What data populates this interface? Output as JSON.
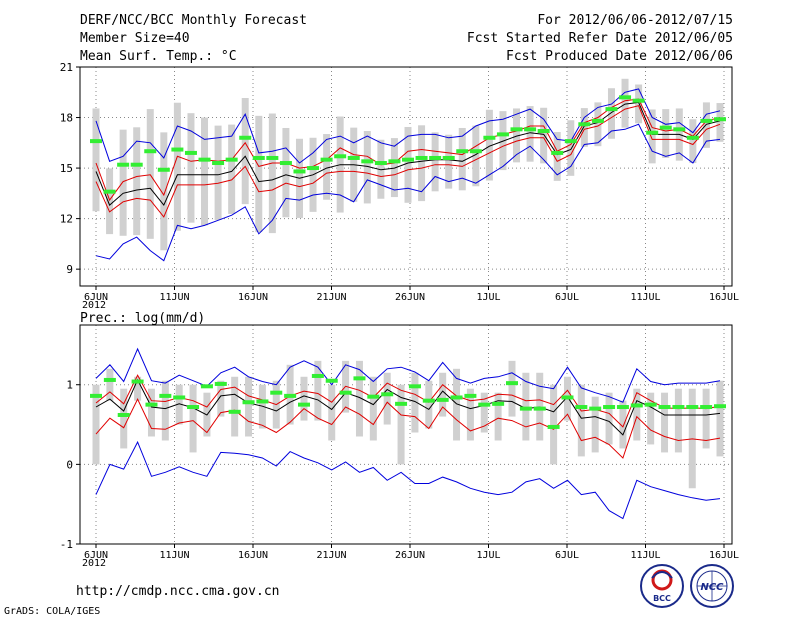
{
  "header": {
    "title": "DERF/NCC/BCC Monthly Forecast",
    "member_size": "Member Size=40",
    "variable": "Mean Surf. Temp.: °C",
    "period": "For 2012/06/06-2012/07/15",
    "refer_date": "Fcst Started Refer Date 2012/06/05",
    "produced_date": "Fcst Produced Date 2012/06/06"
  },
  "footer": {
    "url": "http://cmdp.ncc.cma.gov.cn",
    "grads_credit": "GrADS: COLA/IGES",
    "logo_bcc_text": "BCC",
    "logo_ncc_text": "NCC"
  },
  "colors": {
    "mean": "#000000",
    "spread": "#e00000",
    "extreme": "#0000dd",
    "climatology": "#33ee33",
    "range_bar": "#d0d0d0"
  },
  "chart_data": [
    {
      "type": "line",
      "title": "Mean Surf. Temp.: °C",
      "x_start_day": 1,
      "x_end_day": 40,
      "x_tick_labels": [
        "6JUN",
        "11JUN",
        "16JUN",
        "21JUN",
        "26JUN",
        "1JUL",
        "6JUL",
        "11JUL",
        "16JUL"
      ],
      "x_tick_days": [
        1,
        6,
        11,
        16,
        21,
        26,
        31,
        36,
        41
      ],
      "year_label": "2012",
      "ylim": [
        8,
        21
      ],
      "y_ticks": [
        9,
        12,
        15,
        18,
        21
      ],
      "series": [
        {
          "name": "ensemble mean",
          "values": [
            14.8,
            12.8,
            13.5,
            13.7,
            13.8,
            12.8,
            14.6,
            14.6,
            14.6,
            14.6,
            14.8,
            15.7,
            14.2,
            14.3,
            14.6,
            14.4,
            14.6,
            15.0,
            15.2,
            15.2,
            15.1,
            14.9,
            15.0,
            15.3,
            15.4,
            15.5,
            15.5,
            15.4,
            15.8,
            16.3,
            16.6,
            16.9,
            17.1,
            17.0,
            15.8,
            16.1,
            17.5,
            17.7,
            18.3,
            18.8,
            18.9,
            17.0,
            17.0,
            17.0,
            16.7,
            17.6,
            17.8
          ]
        },
        {
          "name": "spread upper",
          "values": [
            15.3,
            13.1,
            14.2,
            14.5,
            14.6,
            13.4,
            15.7,
            15.4,
            15.5,
            15.4,
            15.5,
            16.5,
            15.1,
            15.3,
            15.3,
            15.0,
            15.1,
            15.5,
            16.2,
            15.8,
            15.7,
            15.2,
            15.3,
            16.0,
            16.1,
            16.0,
            15.9,
            15.8,
            16.3,
            16.8,
            17.0,
            17.2,
            17.5,
            17.5,
            16.0,
            16.4,
            17.7,
            18.0,
            18.6,
            19.0,
            19.1,
            17.4,
            17.2,
            17.3,
            16.9,
            17.8,
            18.0
          ]
        },
        {
          "name": "spread lower",
          "values": [
            14.2,
            12.4,
            13.0,
            13.2,
            13.1,
            12.1,
            14.0,
            14.0,
            14.0,
            14.1,
            14.3,
            15.1,
            13.6,
            13.7,
            14.1,
            13.9,
            14.1,
            14.7,
            14.8,
            14.8,
            14.7,
            14.5,
            14.6,
            14.9,
            15.0,
            15.2,
            15.2,
            15.1,
            15.5,
            15.9,
            16.3,
            16.6,
            16.8,
            16.8,
            15.4,
            15.8,
            17.3,
            17.5,
            18.0,
            18.5,
            18.7,
            16.7,
            16.7,
            16.7,
            16.4,
            17.3,
            17.6
          ]
        },
        {
          "name": "max",
          "values": [
            17.8,
            15.4,
            15.7,
            16.6,
            16.5,
            15.6,
            17.5,
            17.2,
            16.7,
            16.8,
            16.9,
            18.2,
            15.9,
            16.0,
            16.2,
            15.3,
            15.9,
            16.7,
            16.9,
            16.5,
            16.9,
            16.5,
            16.3,
            16.9,
            17.0,
            17.0,
            16.8,
            16.9,
            17.5,
            17.8,
            17.9,
            18.2,
            18.5,
            17.9,
            16.7,
            16.6,
            18.0,
            18.6,
            18.8,
            19.5,
            19.7,
            18.0,
            17.6,
            17.7,
            17.1,
            18.2,
            18.4
          ]
        },
        {
          "name": "min",
          "values": [
            9.8,
            9.6,
            10.5,
            10.9,
            10.1,
            9.5,
            11.6,
            11.4,
            11.6,
            11.9,
            12.2,
            12.7,
            11.1,
            11.9,
            13.2,
            13.1,
            13.4,
            13.5,
            13.4,
            13.0,
            14.3,
            14.0,
            13.7,
            13.8,
            13.6,
            14.5,
            14.2,
            14.4,
            14.1,
            14.6,
            15.1,
            15.8,
            16.3,
            15.5,
            14.6,
            15.1,
            16.4,
            16.5,
            17.2,
            17.3,
            17.6,
            16.0,
            15.7,
            15.9,
            15.3,
            16.6,
            16.7
          ]
        },
        {
          "name": "climatology",
          "values": [
            16.6,
            13.6,
            15.2,
            15.2,
            16.0,
            14.9,
            16.1,
            15.9,
            15.5,
            15.3,
            15.5,
            16.8,
            15.6,
            15.6,
            15.3,
            14.8,
            15.0,
            15.5,
            15.7,
            15.6,
            15.4,
            15.3,
            15.4,
            15.5,
            15.6,
            15.6,
            15.6,
            16.0,
            16.0,
            16.8,
            17.0,
            17.3,
            17.3,
            17.2,
            15.9,
            16.6,
            17.6,
            17.8,
            18.5,
            19.2,
            19.0,
            17.1,
            17.4,
            17.3,
            16.8,
            17.8,
            17.9
          ]
        }
      ]
    },
    {
      "type": "line",
      "title": "Prec.: log(mm/d)",
      "x_start_day": 1,
      "x_end_day": 40,
      "x_tick_labels": [
        "6JUN",
        "11JUN",
        "16JUN",
        "21JUN",
        "26JUN",
        "1JUL",
        "6JUL",
        "11JUL",
        "16JUL"
      ],
      "x_tick_days": [
        1,
        6,
        11,
        16,
        21,
        26,
        31,
        36,
        41
      ],
      "year_label": "2012",
      "ylim": [
        -1,
        1.75
      ],
      "y_ticks": [
        -1,
        0,
        1
      ],
      "series": [
        {
          "name": "ensemble mean",
          "values": [
            0.72,
            0.82,
            0.67,
            1.06,
            0.72,
            0.7,
            0.76,
            0.71,
            0.62,
            0.86,
            0.88,
            0.77,
            0.73,
            0.67,
            0.78,
            0.86,
            0.81,
            0.69,
            0.9,
            0.84,
            0.75,
            0.94,
            0.84,
            0.79,
            0.69,
            0.92,
            0.76,
            0.7,
            0.74,
            0.8,
            0.79,
            0.7,
            0.72,
            0.66,
            0.85,
            0.58,
            0.6,
            0.54,
            0.37,
            0.8,
            0.72,
            0.62,
            0.62,
            0.62,
            0.62,
            0.64
          ]
        },
        {
          "name": "spread upper",
          "values": [
            0.77,
            0.91,
            0.76,
            1.12,
            0.8,
            0.79,
            0.84,
            0.8,
            0.72,
            0.94,
            0.97,
            0.86,
            0.81,
            0.75,
            0.86,
            0.92,
            0.89,
            0.78,
            0.98,
            0.93,
            0.84,
            1.02,
            0.93,
            0.88,
            0.78,
            1.0,
            0.86,
            0.8,
            0.82,
            0.88,
            0.87,
            0.8,
            0.81,
            0.75,
            0.93,
            0.67,
            0.69,
            0.64,
            0.47,
            0.9,
            0.8,
            0.71,
            0.7,
            0.71,
            0.7,
            0.73
          ]
        },
        {
          "name": "spread lower",
          "values": [
            0.38,
            0.58,
            0.46,
            0.82,
            0.45,
            0.44,
            0.52,
            0.55,
            0.4,
            0.65,
            0.68,
            0.54,
            0.49,
            0.4,
            0.53,
            0.7,
            0.58,
            0.5,
            0.72,
            0.63,
            0.5,
            0.78,
            0.62,
            0.6,
            0.45,
            0.72,
            0.56,
            0.42,
            0.48,
            0.58,
            0.55,
            0.47,
            0.52,
            0.44,
            0.63,
            0.3,
            0.34,
            0.25,
            0.08,
            0.6,
            0.43,
            0.35,
            0.3,
            0.32,
            0.3,
            0.33
          ]
        },
        {
          "name": "max",
          "values": [
            1.08,
            1.25,
            1.04,
            1.45,
            1.05,
            1.02,
            1.12,
            1.05,
            0.98,
            1.15,
            1.22,
            1.1,
            1.04,
            1.0,
            1.22,
            1.3,
            1.22,
            1.0,
            1.25,
            1.19,
            1.04,
            1.2,
            1.22,
            1.16,
            1.05,
            1.28,
            1.08,
            1.02,
            1.08,
            1.1,
            1.15,
            1.04,
            0.98,
            0.95,
            1.22,
            0.96,
            0.9,
            0.85,
            0.78,
            1.2,
            1.04,
            1.0,
            1.02,
            1.02,
            1.02,
            1.05
          ]
        },
        {
          "name": "min",
          "values": [
            -0.38,
            0.0,
            -0.06,
            0.28,
            -0.15,
            -0.1,
            -0.03,
            -0.1,
            -0.15,
            0.15,
            0.14,
            0.12,
            0.08,
            -0.02,
            0.16,
            0.08,
            0.02,
            -0.07,
            0.03,
            -0.1,
            -0.04,
            -0.2,
            -0.1,
            -0.24,
            -0.24,
            -0.16,
            -0.22,
            -0.3,
            -0.35,
            -0.38,
            -0.35,
            -0.22,
            -0.18,
            -0.3,
            -0.2,
            -0.38,
            -0.35,
            -0.58,
            -0.68,
            -0.2,
            -0.28,
            -0.33,
            -0.38,
            -0.42,
            -0.45,
            -0.43
          ]
        },
        {
          "name": "climatology",
          "values": [
            0.86,
            1.06,
            0.62,
            1.04,
            0.75,
            0.86,
            0.84,
            0.72,
            0.98,
            1.01,
            0.66,
            0.78,
            0.79,
            0.9,
            0.86,
            0.75,
            1.11,
            1.05,
            0.9,
            1.08,
            0.85,
            0.88,
            0.76,
            0.98,
            0.8,
            0.81,
            0.84,
            0.86,
            0.75,
            0.76,
            1.02,
            0.7,
            0.7,
            0.47,
            0.84,
            0.72,
            0.7,
            0.72,
            0.72,
            0.74,
            0.75,
            0.72,
            0.72,
            0.72,
            0.72,
            0.73
          ]
        }
      ],
      "range_bars": [
        [
          0.0,
          1.0
        ],
        [
          0.8,
          1.2
        ],
        [
          0.2,
          0.95
        ],
        [
          0.8,
          1.1
        ],
        [
          0.35,
          0.95
        ],
        [
          0.3,
          1.05
        ],
        [
          0.5,
          1.0
        ],
        [
          0.15,
          1.0
        ],
        [
          0.35,
          0.9
        ],
        [
          0.6,
          1.05
        ],
        [
          0.35,
          1.1
        ],
        [
          0.35,
          1.1
        ],
        [
          0.45,
          1.0
        ],
        [
          0.45,
          1.05
        ],
        [
          0.5,
          1.25
        ],
        [
          0.55,
          1.1
        ],
        [
          0.55,
          1.3
        ],
        [
          0.3,
          1.0
        ],
        [
          0.65,
          1.3
        ],
        [
          0.35,
          1.3
        ],
        [
          0.3,
          1.1
        ],
        [
          0.5,
          1.15
        ],
        [
          0.0,
          1.0
        ],
        [
          0.4,
          1.15
        ],
        [
          0.45,
          1.05
        ],
        [
          0.6,
          1.15
        ],
        [
          0.3,
          1.2
        ],
        [
          0.3,
          0.95
        ],
        [
          0.4,
          0.9
        ],
        [
          0.3,
          0.9
        ],
        [
          0.6,
          1.3
        ],
        [
          0.3,
          1.15
        ],
        [
          0.3,
          1.15
        ],
        [
          0.0,
          1.0
        ],
        [
          0.55,
          1.1
        ],
        [
          0.1,
          1.0
        ],
        [
          0.15,
          0.85
        ],
        [
          0.25,
          0.9
        ],
        [
          0.2,
          0.8
        ],
        [
          0.3,
          0.95
        ],
        [
          0.25,
          0.9
        ],
        [
          0.15,
          0.9
        ],
        [
          0.15,
          0.95
        ],
        [
          -0.3,
          0.95
        ],
        [
          0.2,
          0.95
        ],
        [
          0.1,
          1.05
        ]
      ]
    }
  ]
}
